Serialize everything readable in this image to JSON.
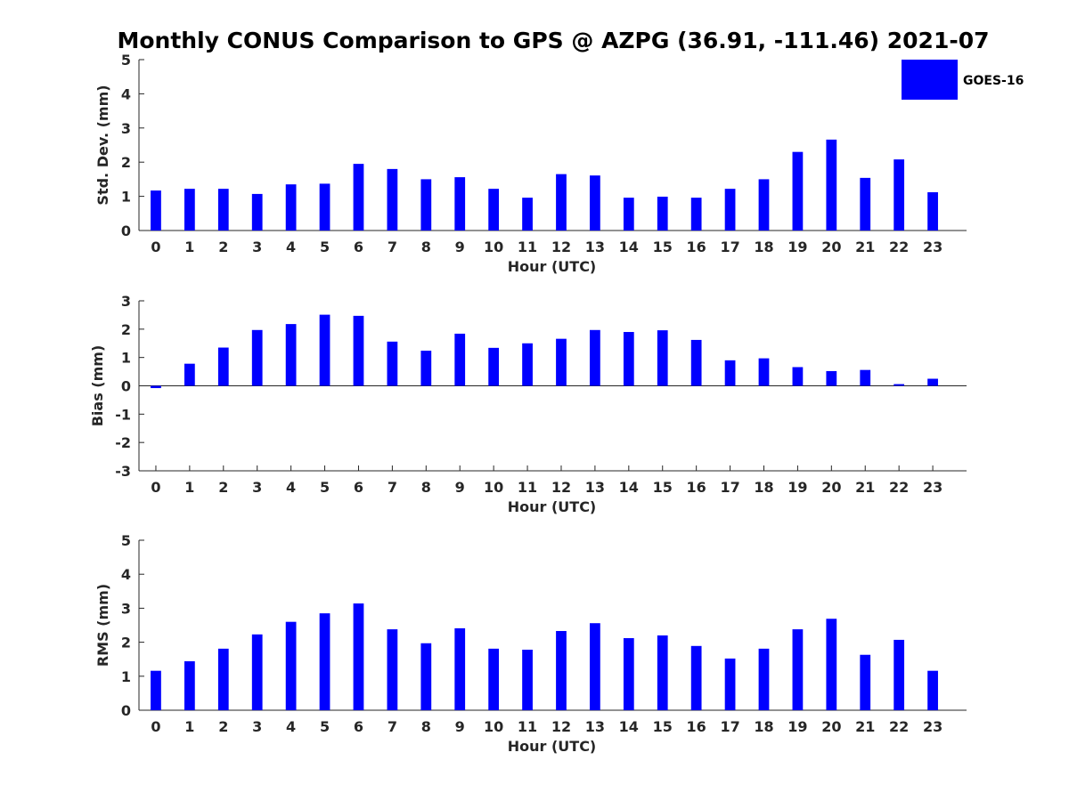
{
  "figure_title": "Monthly CONUS Comparison to GPS @ AZPG (36.91, -111.46) 2021-07",
  "legend": {
    "label": "GOES-16",
    "color": "#0000ff"
  },
  "chart_data": [
    {
      "type": "bar",
      "xlabel": "Hour (UTC)",
      "ylabel": "Std. Dev. (mm)",
      "ylim": [
        0,
        5
      ],
      "yticks": [
        0,
        1,
        2,
        3,
        4,
        5
      ],
      "categories": [
        "0",
        "1",
        "2",
        "3",
        "4",
        "5",
        "6",
        "7",
        "8",
        "9",
        "10",
        "11",
        "12",
        "13",
        "14",
        "15",
        "16",
        "17",
        "18",
        "19",
        "20",
        "21",
        "22",
        "23"
      ],
      "series": [
        {
          "name": "GOES-16",
          "color": "#0000ff",
          "values": [
            1.17,
            1.22,
            1.22,
            1.07,
            1.35,
            1.37,
            1.95,
            1.8,
            1.5,
            1.56,
            1.22,
            0.96,
            1.65,
            1.61,
            0.96,
            0.99,
            0.96,
            1.22,
            1.5,
            2.3,
            2.66,
            1.54,
            2.08,
            1.12
          ]
        }
      ],
      "legend": "top-right",
      "grid": false
    },
    {
      "type": "bar",
      "xlabel": "Hour (UTC)",
      "ylabel": "Bias (mm)",
      "ylim": [
        -3,
        3
      ],
      "yticks": [
        -3,
        -2,
        -1,
        0,
        1,
        2,
        3
      ],
      "categories": [
        "0",
        "1",
        "2",
        "3",
        "4",
        "5",
        "6",
        "7",
        "8",
        "9",
        "10",
        "11",
        "12",
        "13",
        "14",
        "15",
        "16",
        "17",
        "18",
        "19",
        "20",
        "21",
        "22",
        "23"
      ],
      "series": [
        {
          "name": "GOES-16",
          "color": "#0000ff",
          "values": [
            -0.08,
            0.78,
            1.35,
            1.97,
            2.18,
            2.51,
            2.47,
            1.56,
            1.24,
            1.84,
            1.34,
            1.5,
            1.66,
            1.97,
            1.9,
            1.96,
            1.62,
            0.9,
            0.97,
            0.66,
            0.52,
            0.56,
            0.06,
            0.25
          ]
        }
      ],
      "grid": false
    },
    {
      "type": "bar",
      "xlabel": "Hour (UTC)",
      "ylabel": "RMS (mm)",
      "ylim": [
        0,
        5
      ],
      "yticks": [
        0,
        1,
        2,
        3,
        4,
        5
      ],
      "categories": [
        "0",
        "1",
        "2",
        "3",
        "4",
        "5",
        "6",
        "7",
        "8",
        "9",
        "10",
        "11",
        "12",
        "13",
        "14",
        "15",
        "16",
        "17",
        "18",
        "19",
        "20",
        "21",
        "22",
        "23"
      ],
      "series": [
        {
          "name": "GOES-16",
          "color": "#0000ff",
          "values": [
            1.16,
            1.44,
            1.81,
            2.23,
            2.6,
            2.85,
            3.14,
            2.38,
            1.97,
            2.41,
            1.81,
            1.78,
            2.33,
            2.56,
            2.12,
            2.2,
            1.89,
            1.52,
            1.81,
            2.38,
            2.69,
            1.63,
            2.07,
            1.16
          ]
        }
      ],
      "grid": false
    }
  ]
}
